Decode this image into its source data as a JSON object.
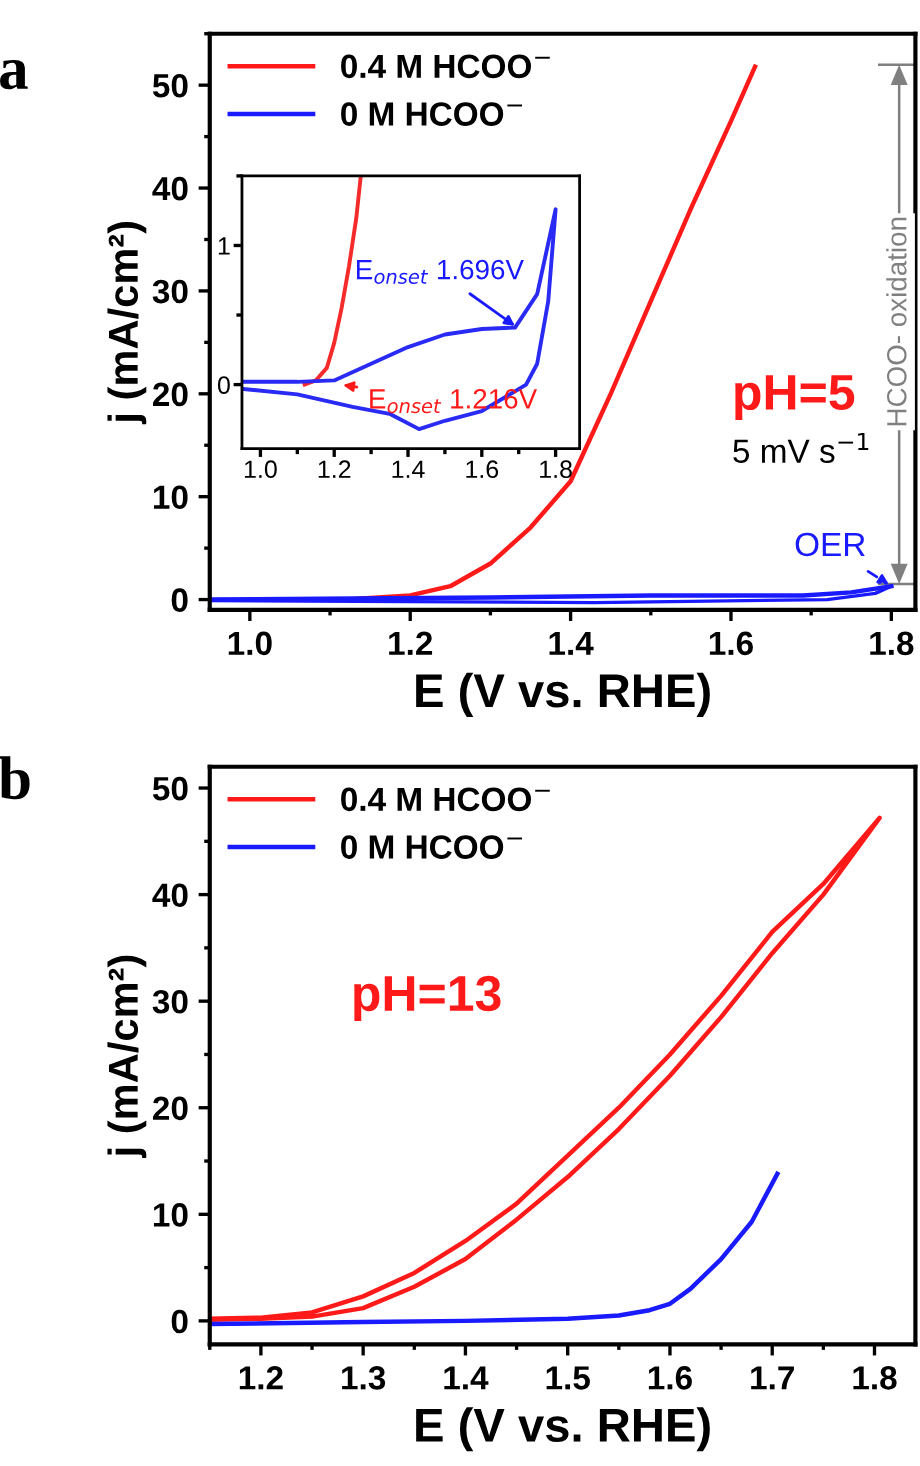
{
  "chart_data": [
    {
      "type": "line",
      "xlabel": "E (V vs. RHE)",
      "ylabel": "j (mA/cm²)",
      "xlim": [
        0.95,
        1.83
      ],
      "ylim": [
        -1,
        55
      ],
      "xticks": [
        {
          "value": 1.0,
          "label": "1.0"
        },
        1.2,
        1.4,
        1.6,
        1.8
      ],
      "yticks": [
        0,
        10,
        20,
        30,
        40,
        50
      ],
      "legend": "top left",
      "grid": false,
      "marker": "none",
      "line_style": "solid",
      "series": [
        {
          "name": "0.4 M HCOO$^{−}$",
          "color": "#ff1a1a",
          "x": [
            1.12,
            1.2,
            1.25,
            1.3,
            1.35,
            1.4,
            1.45,
            1.5,
            1.55,
            1.6,
            1.63
          ],
          "values": [
            0,
            0.4,
            1.3,
            3.5,
            7,
            11.5,
            20,
            29,
            38,
            46.5,
            51.8
          ]
        },
        {
          "name": "0 M HCOO$^{−}$",
          "color": "#1a1aff",
          "x": [
            0.95,
            1.3,
            1.5,
            1.69,
            1.75,
            1.8
          ],
          "values": [
            0,
            0.2,
            0.4,
            0.4,
            0.7,
            1.3
          ]
        },
        {
          "color": "#1a1aff",
          "x": [
            1.8,
            1.78,
            1.72,
            1.43,
            0.95
          ],
          "values": [
            1.3,
            0.6,
            0,
            -0.3,
            -0.1
          ]
        }
      ],
      "annotations": [
        "a",
        "pH=5",
        "5 mV s$^{−1}$",
        {
          "text": "OER",
          "x": 1.8,
          "y": 1.3
        },
        "HCOO- oxidation"
      ]
    },
    {
      "type": "line",
      "xlim": [
        0.95,
        1.865
      ],
      "ylim": [
        -0.46,
        1.5
      ],
      "xticks": [
        {
          "value": 1.0,
          "label": "1.0"
        },
        1.2,
        1.4,
        1.6,
        1.8
      ],
      "yticks": [
        0,
        1
      ],
      "grid": false,
      "marker": "none",
      "line_style": "solid",
      "series": [
        {
          "color": "#f52a2a",
          "x": [
            1.12,
            1.15,
            1.18,
            1.2,
            1.22,
            1.24,
            1.26,
            1.272
          ],
          "values": [
            0,
            0.03,
            0.12,
            0.3,
            0.55,
            0.85,
            1.2,
            1.5
          ]
        },
        {
          "color": "#2a2af5",
          "x": [
            0.95,
            1.1,
            1.2,
            1.3,
            1.4,
            1.5,
            1.6,
            1.69,
            1.75,
            1.8,
            1.78,
            1.75,
            1.72,
            1.6,
            1.5,
            1.43,
            1.35,
            1.25,
            1.1,
            0.95
          ],
          "values": [
            0.02,
            0.02,
            0.03,
            0.15,
            0.27,
            0.36,
            0.4,
            0.41,
            0.65,
            1.26,
            0.6,
            0.15,
            0,
            -0.19,
            -0.26,
            -0.32,
            -0.21,
            -0.16,
            -0.07,
            -0.03
          ]
        }
      ],
      "annotations": [
        {
          "text": "E$_{onset}$ 1.696V",
          "x": 1.696,
          "y": 0.41
        },
        {
          "text": "E$_{onset}$ 1.216V",
          "x": 1.216,
          "y": 0
        }
      ]
    },
    {
      "type": "line",
      "xlabel": "E (V vs. RHE)",
      "ylabel": "j (mA/cm²)",
      "xlim": [
        1.15,
        1.84
      ],
      "ylim": [
        -2.2,
        52
      ],
      "xticks": [
        1.2,
        1.3,
        1.4,
        1.5,
        1.6,
        1.7,
        1.8
      ],
      "yticks": [
        0,
        10,
        20,
        30,
        40,
        50
      ],
      "legend": "top left",
      "grid": false,
      "marker": "none",
      "line_style": "solid",
      "series": [
        {
          "name": "0.4 M HCOO$^{−}$",
          "color": "#ff1a1a",
          "x": [
            1.15,
            1.2,
            1.25,
            1.3,
            1.35,
            1.4,
            1.45,
            1.5,
            1.55,
            1.6,
            1.65,
            1.7,
            1.75,
            1.805,
            1.75,
            1.7,
            1.65,
            1.6,
            1.55,
            1.5,
            1.45,
            1.4,
            1.35,
            1.3,
            1.25,
            1.2,
            1.15
          ],
          "values": [
            0.1,
            0.2,
            0.4,
            1.2,
            3.2,
            5.8,
            9.5,
            13.5,
            18,
            23,
            28.5,
            34.5,
            40,
            47.2,
            41,
            36.5,
            30.5,
            25,
            20,
            15.5,
            11,
            7.5,
            4.5,
            2.3,
            0.8,
            0.3,
            0.2
          ]
        },
        {
          "name": "0 M HCOO$^{−}$",
          "color": "#1a1aff",
          "x": [
            1.15,
            1.3,
            1.4,
            1.5,
            1.55,
            1.58,
            1.6,
            1.62,
            1.65,
            1.68,
            1.705
          ],
          "values": [
            -0.3,
            -0.1,
            0,
            0.2,
            0.5,
            1,
            1.6,
            3,
            5.8,
            9.3,
            13.8
          ]
        }
      ],
      "annotations": [
        "b",
        "pH=13"
      ]
    }
  ]
}
